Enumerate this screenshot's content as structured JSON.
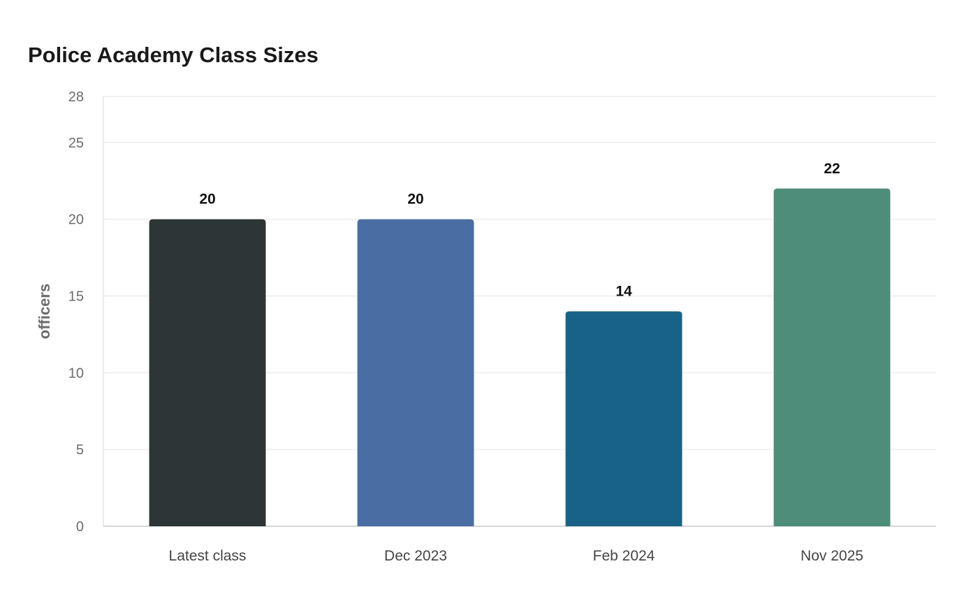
{
  "chart_data": {
    "type": "bar",
    "title": "Police Academy Class Sizes",
    "xlabel": "",
    "ylabel": "officers",
    "categories": [
      "Latest class",
      "Dec 2023",
      "Feb 2024",
      "Nov 2025"
    ],
    "values": [
      20,
      20,
      14,
      22
    ],
    "colors": [
      "#2e3536",
      "#4a6ea3",
      "#186288",
      "#4f8d7b"
    ],
    "ylim": [
      0,
      28
    ],
    "yticks": [
      0,
      5,
      10,
      15,
      20,
      25,
      28
    ],
    "grid": true,
    "legend": "none"
  }
}
